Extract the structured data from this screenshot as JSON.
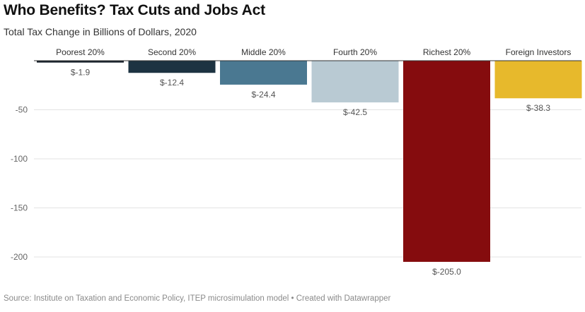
{
  "title": "Who Benefits? Tax Cuts and Jobs Act",
  "subtitle": "Total Tax Change in Billions of Dollars, 2020",
  "footer": "Source: Institute on Taxation and Economic Policy, ITEP microsimulation model • Created with Datawrapper",
  "chart_data": {
    "type": "bar",
    "title": "Who Benefits? Tax Cuts and Jobs Act",
    "subtitle": "Total Tax Change in Billions of Dollars, 2020",
    "xlabel": "",
    "ylabel": "",
    "categories": [
      "Poorest 20%",
      "Second 20%",
      "Middle 20%",
      "Fourth 20%",
      "Richest 20%",
      "Foreign Investors"
    ],
    "values": [
      -1.9,
      -12.4,
      -24.4,
      -42.5,
      -205.0,
      -38.3
    ],
    "value_labels": [
      "$-1.9",
      "$-12.4",
      "$-24.4",
      "$-42.5",
      "$-205.0",
      "$-38.3"
    ],
    "colors": [
      "#17202b",
      "#1d3342",
      "#4a7891",
      "#b9cad3",
      "#850c0e",
      "#e7b92c"
    ],
    "ylim": [
      -205,
      0
    ],
    "yticks": [
      -50,
      -100,
      -150,
      -200
    ],
    "ytick_labels": [
      "-50",
      "-100",
      "-150",
      "-200"
    ],
    "grid": true
  }
}
